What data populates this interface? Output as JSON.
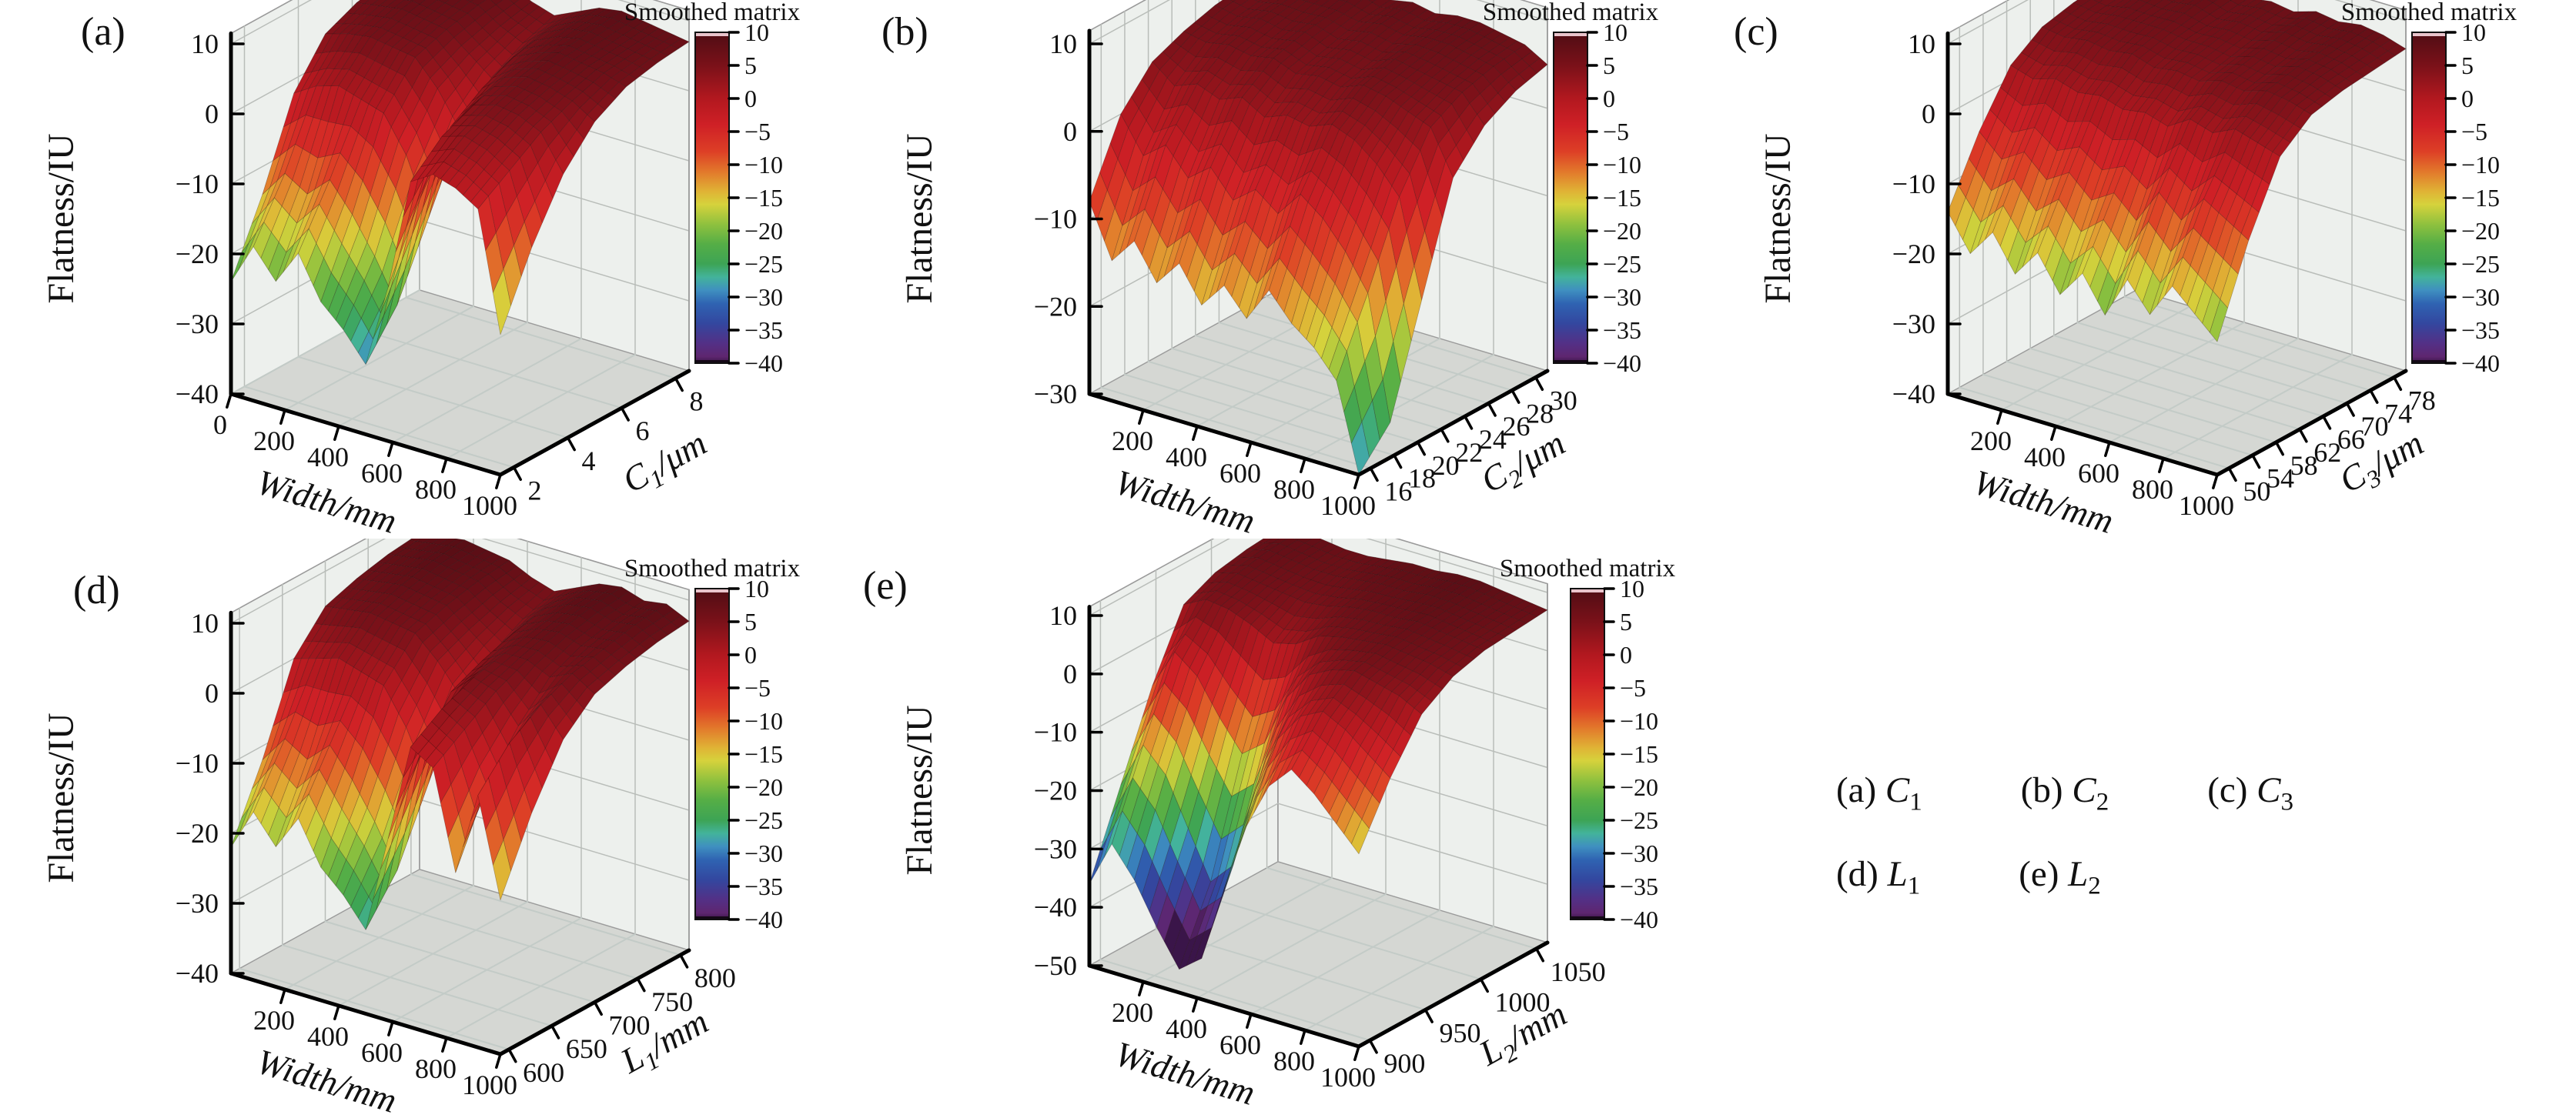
{
  "colors": {
    "background": "#ffffff",
    "text": "#111111",
    "axis_line": "#000000",
    "box_edge": "#9a9a9a",
    "wall_fill": "#edf0ed",
    "wall_grid": "#b9bdb9",
    "floor_fill": "#d5d7d3",
    "floor_grid": "#c3cbc7",
    "mesh_edge": "rgba(35,12,12,0.32)"
  },
  "colorbar": {
    "title": "Smoothed matrix",
    "ticks": [
      10,
      5,
      0,
      -5,
      -10,
      -15,
      -20,
      -25,
      -30,
      -35,
      -40
    ],
    "range": [
      -40,
      10
    ],
    "top_highlight": "#e9c4cc",
    "bottom_cap": "#140816",
    "stops": [
      {
        "z": 10,
        "c": "#4f0d14"
      },
      {
        "z": 5,
        "c": "#7a1119"
      },
      {
        "z": 0,
        "c": "#b2181f"
      },
      {
        "z": -4,
        "c": "#cf2026"
      },
      {
        "z": -8,
        "c": "#dd3f26"
      },
      {
        "z": -11,
        "c": "#e2772b"
      },
      {
        "z": -14,
        "c": "#e0b235"
      },
      {
        "z": -16,
        "c": "#d6d23c"
      },
      {
        "z": -19,
        "c": "#8fc13e"
      },
      {
        "z": -22,
        "c": "#55ae46"
      },
      {
        "z": -25,
        "c": "#3da455"
      },
      {
        "z": -27,
        "c": "#43b39b"
      },
      {
        "z": -29,
        "c": "#3f8fc0"
      },
      {
        "z": -31,
        "c": "#2f63b2"
      },
      {
        "z": -34,
        "c": "#33479f"
      },
      {
        "z": -37,
        "c": "#533086"
      },
      {
        "z": -39,
        "c": "#5e2670"
      },
      {
        "z": -40,
        "c": "#3a1549"
      }
    ]
  },
  "caption": {
    "rows": [
      {
        "items": [
          {
            "label": "(a) ",
            "sym": "C",
            "sub": "1"
          },
          {
            "label": "(b) ",
            "sym": "C",
            "sub": "2"
          },
          {
            "label": "(c) ",
            "sym": "C",
            "sub": "3"
          }
        ]
      },
      {
        "items": [
          {
            "label": "(d) ",
            "sym": "L",
            "sub": "1"
          },
          {
            "label": "(e) ",
            "sym": "L",
            "sub": "2"
          }
        ]
      }
    ]
  },
  "chart_data": [
    {
      "type": "surface",
      "panel_label": "(a)",
      "xlabel": "Width/mm",
      "x_range": [
        0,
        1000
      ],
      "x_ticks": [
        0,
        200,
        400,
        600,
        800,
        1000
      ],
      "ylabel": {
        "sym": "C",
        "sub": "1",
        "unit": "/μm"
      },
      "y_range": [
        1.5,
        8.5
      ],
      "y_ticks": [
        2,
        4,
        6,
        8
      ],
      "zlabel": "Flatness/IU",
      "z_range": [
        -40,
        10
      ],
      "z_ticks": [
        10,
        0,
        -10,
        -20,
        -30,
        -40
      ],
      "z_grid": [
        [
          -24,
          -18,
          -22,
          -17,
          -23,
          -26,
          -30,
          -18,
          -2,
          0,
          -1,
          -3,
          -20
        ],
        [
          -14,
          -10,
          -12,
          -9,
          -13,
          -18,
          -24,
          -8,
          2,
          3,
          2,
          0,
          -10
        ],
        [
          -2,
          0,
          1,
          0,
          -1,
          -6,
          -14,
          0,
          4,
          5,
          4.5,
          3,
          -2
        ],
        [
          4,
          5,
          5.5,
          5,
          4.5,
          1,
          -4,
          3,
          5.5,
          6.5,
          6,
          5,
          3
        ],
        [
          6,
          6.5,
          7,
          6.5,
          6,
          3.5,
          1,
          5,
          6.5,
          7.5,
          7,
          6.5,
          5.5
        ],
        [
          7,
          7.5,
          8,
          7.5,
          7,
          5,
          3.5,
          6,
          7.5,
          8,
          7.5,
          7,
          6.5
        ],
        [
          7.5,
          8,
          8.5,
          8,
          7.5,
          6,
          5,
          6.5,
          8,
          8.5,
          8,
          7.5,
          7
        ]
      ]
    },
    {
      "type": "surface",
      "panel_label": "(b)",
      "xlabel": "Width/mm",
      "x_range": [
        0,
        1000
      ],
      "x_ticks": [
        200,
        400,
        600,
        800,
        1000
      ],
      "ylabel": {
        "sym": "C",
        "sub": "2",
        "unit": "/μm"
      },
      "y_range": [
        15,
        31
      ],
      "y_ticks": [
        16,
        18,
        20,
        22,
        24,
        26,
        28,
        30
      ],
      "zlabel": "Flatness/IU",
      "z_range": [
        -30,
        10
      ],
      "z_ticks": [
        10,
        0,
        -10,
        -20,
        -30
      ],
      "z_grid": [
        [
          -8,
          -14,
          -11,
          -15,
          -12,
          -16,
          -13,
          -16,
          -12,
          -15,
          -17,
          -20,
          -30
        ],
        [
          0,
          -4,
          -2,
          -5,
          -3,
          -6,
          -4,
          -6,
          -3,
          -5,
          -8,
          -12,
          -26
        ],
        [
          4,
          2,
          3,
          2,
          3,
          1.5,
          2.5,
          2,
          3,
          2,
          0,
          -3,
          -14
        ],
        [
          5.5,
          5,
          5.5,
          5,
          5.5,
          4.5,
          5,
          4.5,
          5.5,
          5,
          4,
          3,
          -2
        ],
        [
          6.5,
          6,
          6.5,
          6,
          6.5,
          5.5,
          6,
          5.5,
          6.5,
          6,
          5.5,
          5,
          2
        ],
        [
          7,
          6.5,
          7,
          7,
          7,
          6.5,
          7,
          6.5,
          7,
          7,
          6.5,
          6,
          4
        ],
        [
          7.5,
          7,
          7.5,
          7.5,
          8,
          7,
          7.5,
          7,
          7.5,
          7.5,
          7,
          6.5,
          5
        ]
      ]
    },
    {
      "type": "surface",
      "panel_label": "(c)",
      "xlabel": "Width/mm",
      "x_range": [
        0,
        1000
      ],
      "x_ticks": [
        200,
        400,
        600,
        800,
        1000
      ],
      "ylabel": {
        "sym": "C",
        "sub": "3",
        "unit": "/μm"
      },
      "y_range": [
        48,
        80
      ],
      "y_ticks": [
        50,
        54,
        58,
        62,
        66,
        70,
        74,
        78
      ],
      "zlabel": "Flatness/IU",
      "z_range": [
        -40,
        10
      ],
      "z_ticks": [
        10,
        0,
        -10,
        -20,
        -30,
        -40
      ],
      "z_grid": [
        [
          -14,
          -19,
          -15,
          -20,
          -16,
          -21,
          -17,
          -22,
          -16,
          -20,
          -15,
          -18,
          -21
        ],
        [
          -5,
          -8,
          -6,
          -9,
          -7,
          -10,
          -8,
          -11,
          -6,
          -9,
          -5,
          -7,
          -9
        ],
        [
          2,
          1,
          2,
          1,
          1.5,
          0.5,
          1,
          0,
          2,
          1,
          2.5,
          1.5,
          0.5
        ],
        [
          5,
          4.5,
          5,
          4.5,
          5,
          4,
          4.5,
          4,
          5,
          4.5,
          5.5,
          5,
          4
        ],
        [
          6,
          5.5,
          6,
          6,
          6,
          5.5,
          5.5,
          5,
          6,
          5.5,
          6.5,
          6,
          5
        ],
        [
          6.5,
          6,
          7,
          6.5,
          7,
          6,
          6.5,
          6,
          7,
          6.5,
          7,
          6.5,
          5.5
        ],
        [
          7,
          6.5,
          7.5,
          7,
          7.5,
          6.5,
          7,
          6.5,
          7.5,
          7,
          7.5,
          7,
          6
        ]
      ]
    },
    {
      "type": "surface",
      "panel_label": "(d)",
      "xlabel": "Width/mm",
      "x_range": [
        0,
        1000
      ],
      "x_ticks": [
        200,
        400,
        600,
        800,
        1000
      ],
      "ylabel": {
        "sym": "L",
        "sub": "1",
        "unit": "/mm"
      },
      "y_range": [
        590,
        810
      ],
      "y_ticks": [
        600,
        650,
        700,
        750,
        800
      ],
      "zlabel": "Flatness/IU",
      "z_range": [
        -40,
        10
      ],
      "z_ticks": [
        10,
        0,
        -10,
        -20,
        -30,
        -40
      ],
      "z_grid": [
        [
          -22,
          -16,
          -20,
          -15,
          -21,
          -24,
          -28,
          -14,
          0,
          -2,
          -16,
          -4,
          -18
        ],
        [
          -12,
          -8,
          -10,
          -7,
          -11,
          -16,
          -22,
          -5,
          3,
          1,
          -6,
          1,
          -8
        ],
        [
          0,
          1,
          2,
          1,
          0,
          -5,
          -12,
          2,
          5,
          4,
          0,
          4,
          0
        ],
        [
          5,
          5.5,
          6,
          5.5,
          5,
          2,
          -2,
          4,
          6,
          6,
          4.5,
          6,
          4
        ],
        [
          6.5,
          7,
          7.5,
          7,
          6.5,
          4,
          1.5,
          5.5,
          7,
          7.5,
          6.5,
          7,
          5.5
        ],
        [
          7.5,
          8,
          8.5,
          8,
          7.5,
          5.5,
          4,
          6.5,
          8,
          8.5,
          7.5,
          8,
          6.5
        ],
        [
          8,
          8.5,
          9,
          8.5,
          8,
          6.5,
          5.5,
          7,
          8.5,
          9,
          8,
          8.5,
          7
        ]
      ]
    },
    {
      "type": "surface",
      "panel_label": "(e)",
      "xlabel": "Width/mm",
      "x_range": [
        0,
        1000
      ],
      "x_ticks": [
        200,
        400,
        600,
        800,
        1000
      ],
      "ylabel": {
        "sym": "L",
        "sub": "2",
        "unit": "/mm"
      },
      "y_range": [
        890,
        1060
      ],
      "y_ticks": [
        900,
        950,
        1000,
        1050
      ],
      "zlabel": "Flatness/IU",
      "z_range": [
        -50,
        10
      ],
      "z_ticks": [
        10,
        0,
        -10,
        -20,
        -30,
        -40,
        -50
      ],
      "z_grid": [
        [
          -36,
          -28,
          -33,
          -40,
          -46,
          -43,
          -30,
          -18,
          -10,
          -6,
          -9,
          -13,
          -17
        ],
        [
          -22,
          -14,
          -18,
          -26,
          -34,
          -30,
          -16,
          -6,
          -1,
          1,
          -1,
          -4,
          -7
        ],
        [
          -8,
          -1,
          -4,
          -10,
          -15,
          -12,
          -3,
          2,
          4,
          5,
          4,
          3,
          1
        ],
        [
          3,
          5,
          4.5,
          3,
          1,
          2,
          4.5,
          5.5,
          6,
          6.5,
          6,
          5.5,
          4.5
        ],
        [
          5.5,
          6.5,
          6,
          5.5,
          5,
          5.5,
          6.5,
          7,
          7,
          7.5,
          7,
          6.5,
          6
        ],
        [
          6.5,
          7.5,
          7,
          6.5,
          6.5,
          7,
          7.5,
          7.5,
          8,
          8,
          7.5,
          7,
          6.5
        ],
        [
          7,
          8,
          7.5,
          7,
          7,
          7.5,
          8,
          8,
          8.5,
          8.5,
          8,
          7.5,
          7
        ]
      ]
    }
  ]
}
